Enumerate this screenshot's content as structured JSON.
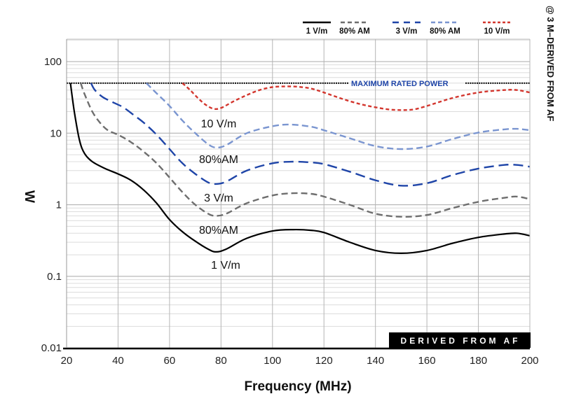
{
  "chart_data": {
    "type": "line",
    "title": "",
    "xlabel": "Frequency (MHz)",
    "ylabel": "W",
    "xlim": [
      20,
      200
    ],
    "ylim": [
      0.01,
      200
    ],
    "yscale": "log",
    "grid": true,
    "x_ticks": [
      20,
      40,
      60,
      80,
      100,
      120,
      140,
      160,
      180,
      200
    ],
    "x_tick_labels": [
      "20",
      "40",
      "60",
      "80",
      "100",
      "120",
      "140",
      "160",
      "180",
      "200"
    ],
    "y_ticks": [
      100,
      10,
      1,
      0.1,
      0.01
    ],
    "y_tick_labels": [
      "100",
      "10",
      "1",
      "0.1",
      "0.01"
    ],
    "legend_position": "top-right",
    "side_note": "@ 3 M–DERIVED FROM AF",
    "badge": "DERIVED FROM AF",
    "reference_line": {
      "label": "MAXIMUM RATED POWER",
      "value": 50,
      "color": "#111111",
      "label_color": "#1f45a8"
    },
    "series": [
      {
        "name": "1 V/m",
        "legend": "1 V/m",
        "curve_label": "1 V/m",
        "color": "#000000",
        "style": "solid",
        "x": [
          21.5,
          23,
          25,
          27,
          30,
          35,
          40,
          45,
          50,
          55,
          60,
          65,
          70,
          75,
          78,
          82,
          90,
          100,
          108,
          115,
          120,
          130,
          140,
          150,
          160,
          170,
          180,
          190,
          195,
          200
        ],
        "values": [
          50,
          20,
          8,
          5.2,
          4.0,
          3.2,
          2.7,
          2.2,
          1.6,
          1.05,
          0.62,
          0.42,
          0.31,
          0.24,
          0.22,
          0.24,
          0.34,
          0.43,
          0.45,
          0.44,
          0.41,
          0.3,
          0.23,
          0.21,
          0.23,
          0.29,
          0.35,
          0.39,
          0.4,
          0.37
        ]
      },
      {
        "name": "1 V/m 80% AM",
        "legend": "80% AM",
        "curve_label": "80%AM",
        "color": "#6e6e6e",
        "style": "dash",
        "x": [
          25.5,
          27,
          30,
          33,
          36,
          40,
          45,
          50,
          55,
          60,
          65,
          70,
          75,
          78,
          82,
          90,
          100,
          108,
          115,
          120,
          130,
          140,
          150,
          160,
          170,
          180,
          190,
          195,
          200
        ],
        "values": [
          50,
          35,
          20,
          14,
          11,
          9.5,
          7.5,
          5.5,
          3.8,
          2.4,
          1.5,
          1.0,
          0.75,
          0.7,
          0.75,
          1.05,
          1.35,
          1.45,
          1.42,
          1.3,
          1.0,
          0.75,
          0.68,
          0.72,
          0.9,
          1.1,
          1.25,
          1.3,
          1.2
        ]
      },
      {
        "name": "3 V/m",
        "legend": "3 V/m",
        "curve_label": "3 V/m",
        "color": "#1f45a8",
        "style": "longdash",
        "x": [
          29.5,
          31,
          34,
          38,
          42,
          46,
          50,
          55,
          60,
          65,
          70,
          75,
          78,
          82,
          90,
          100,
          108,
          115,
          120,
          130,
          140,
          150,
          160,
          170,
          180,
          190,
          195,
          200
        ],
        "values": [
          50,
          40,
          32,
          27,
          23,
          18,
          14,
          9.5,
          6,
          3.8,
          2.7,
          2.05,
          1.95,
          2.1,
          3.0,
          3.8,
          4.0,
          3.9,
          3.7,
          2.9,
          2.2,
          1.85,
          2.0,
          2.6,
          3.2,
          3.6,
          3.6,
          3.4
        ]
      },
      {
        "name": "3 V/m 80% AM",
        "legend": "80% AM",
        "curve_label": "80%AM",
        "color": "#7a95d0",
        "style": "dash",
        "x": [
          51,
          55,
          60,
          65,
          70,
          75,
          78,
          82,
          90,
          100,
          107,
          115,
          120,
          130,
          140,
          150,
          160,
          170,
          180,
          190,
          195,
          200
        ],
        "values": [
          50,
          36,
          24,
          15,
          10,
          7,
          6.3,
          6.8,
          10,
          12.5,
          13.2,
          12.3,
          11,
          8.5,
          6.6,
          6.0,
          6.5,
          8.3,
          10.2,
          11.3,
          11.5,
          11
        ]
      },
      {
        "name": "10 V/m",
        "legend": "10 V/m",
        "curve_label": "10 V/m",
        "color": "#d3362e",
        "style": "dot",
        "x": [
          65,
          68,
          71,
          74,
          77,
          80,
          85,
          90,
          95,
          100,
          105,
          110,
          115,
          120,
          125,
          130,
          135,
          140,
          145,
          150,
          155,
          160,
          170,
          180,
          190,
          195,
          200
        ],
        "values": [
          50,
          40,
          31,
          25,
          22,
          22.5,
          28,
          34,
          40,
          44,
          45,
          44.5,
          42,
          37,
          32,
          28,
          25,
          23,
          21.5,
          21,
          21.5,
          24,
          31,
          37,
          40,
          40,
          37
        ]
      }
    ]
  }
}
